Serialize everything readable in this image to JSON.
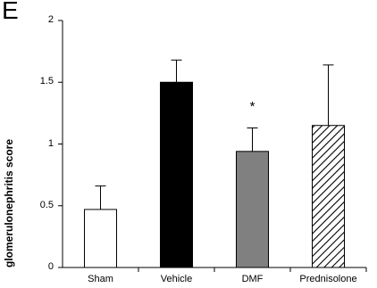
{
  "panel_label": "E",
  "chart_data": {
    "type": "bar",
    "categories": [
      "Sham",
      "Vehicle",
      "DMF",
      "Prednisolone"
    ],
    "values": [
      0.47,
      1.5,
      0.94,
      1.15
    ],
    "errors": [
      0.19,
      0.18,
      0.19,
      0.49
    ],
    "bar_fills": [
      "#ffffff",
      "#000000",
      "#808080",
      "hatched"
    ],
    "significance": [
      "",
      "",
      "*",
      ""
    ],
    "title": "",
    "xlabel": "",
    "ylabel": "glomerulonephritis score",
    "ylim": [
      0,
      2
    ],
    "yticks": [
      "0",
      "0.5",
      "1",
      "1.5",
      "2"
    ],
    "grid": false,
    "legend": "none"
  }
}
